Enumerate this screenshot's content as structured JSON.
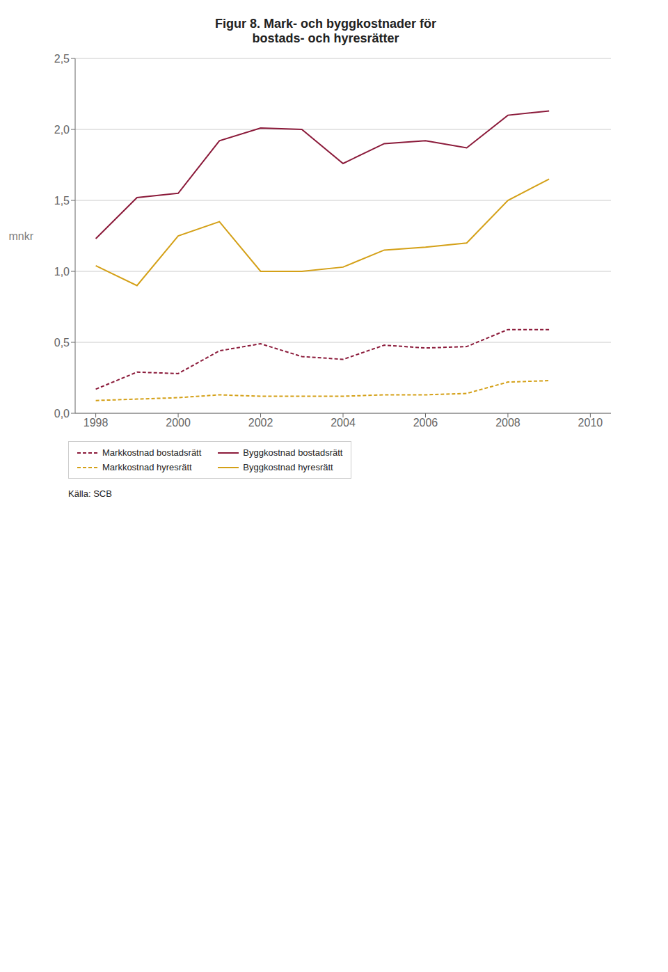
{
  "chart_data": {
    "type": "line",
    "title": "Figur 8. Mark- och byggkostnader för\nbostads- och hyresrätter",
    "y_label": "mnkr",
    "annotations": [
      "Källa: SCB"
    ],
    "x": [
      1998,
      1999,
      2000,
      2001,
      2002,
      2003,
      2004,
      2005,
      2006,
      2007,
      2008,
      2009
    ],
    "xlim": [
      1997.5,
      2010.5
    ],
    "xticks": [
      1998,
      2000,
      2002,
      2004,
      2006,
      2008,
      2010
    ],
    "ylim": [
      0.0,
      2.5
    ],
    "yticks": [
      {
        "value": 0.0,
        "label": "0,0"
      },
      {
        "value": 0.5,
        "label": "0,5"
      },
      {
        "value": 1.0,
        "label": "1,0"
      },
      {
        "value": 1.5,
        "label": "1,5"
      },
      {
        "value": 2.0,
        "label": "2,0"
      },
      {
        "value": 2.5,
        "label": "2,5"
      }
    ],
    "grid": true,
    "legend": "bottom",
    "series": [
      {
        "name": "Markkostnad bostadsrätt",
        "color": "#8B1A3A",
        "line_style": "dashed",
        "values": [
          0.17,
          0.29,
          0.28,
          0.44,
          0.49,
          0.4,
          0.38,
          0.48,
          0.46,
          0.47,
          0.59,
          0.59
        ]
      },
      {
        "name": "Byggkostnad bostadsrätt",
        "color": "#8B1A3A",
        "line_style": "solid",
        "values": [
          1.23,
          1.52,
          1.55,
          1.92,
          2.01,
          2.0,
          1.76,
          1.9,
          1.92,
          1.87,
          2.1,
          2.13
        ]
      },
      {
        "name": "Markkostnad hyresrätt",
        "color": "#D4A017",
        "line_style": "dashed",
        "values": [
          0.09,
          0.1,
          0.11,
          0.13,
          0.12,
          0.12,
          0.12,
          0.13,
          0.13,
          0.14,
          0.22,
          0.23
        ]
      },
      {
        "name": "Byggkostnad hyresrätt",
        "color": "#D4A017",
        "line_style": "solid",
        "values": [
          1.04,
          0.9,
          1.25,
          1.35,
          1.0,
          1.0,
          1.03,
          1.15,
          1.17,
          1.2,
          1.5,
          1.65
        ]
      }
    ]
  }
}
